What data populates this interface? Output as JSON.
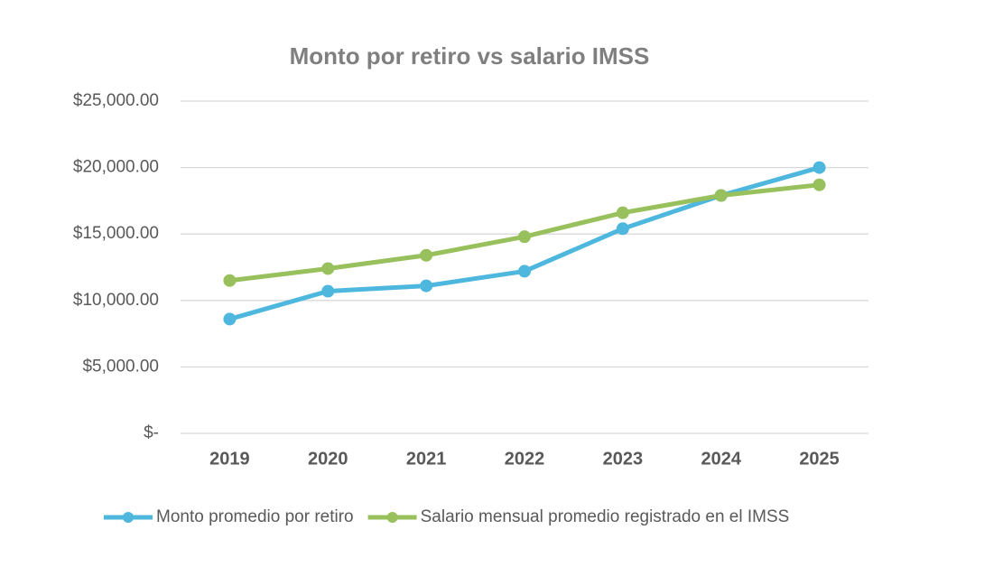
{
  "chart_data": {
    "type": "line",
    "title": "Monto por retiro vs salario IMSS",
    "categories": [
      "2019",
      "2020",
      "2021",
      "2022",
      "2023",
      "2024",
      "2025"
    ],
    "series": [
      {
        "name": "Monto promedio por retiro",
        "color": "#4eb7de",
        "values": [
          8600,
          10700,
          11100,
          12200,
          15400,
          17900,
          20000
        ]
      },
      {
        "name": "Salario mensual promedio registrado en el IMSS",
        "color": "#98c05c",
        "values": [
          11500,
          12400,
          13400,
          14800,
          16600,
          17900,
          18700
        ]
      }
    ],
    "ylim": [
      0,
      25000
    ],
    "yticks": [
      {
        "value": 0,
        "label": "$-"
      },
      {
        "value": 5000,
        "label": "$5,000.00"
      },
      {
        "value": 10000,
        "label": "$10,000.00"
      },
      {
        "value": 15000,
        "label": "$15,000.00"
      },
      {
        "value": 20000,
        "label": "$20,000.00"
      },
      {
        "value": 25000,
        "label": "$25,000.00"
      }
    ],
    "grid": true,
    "legend": "bottom"
  }
}
